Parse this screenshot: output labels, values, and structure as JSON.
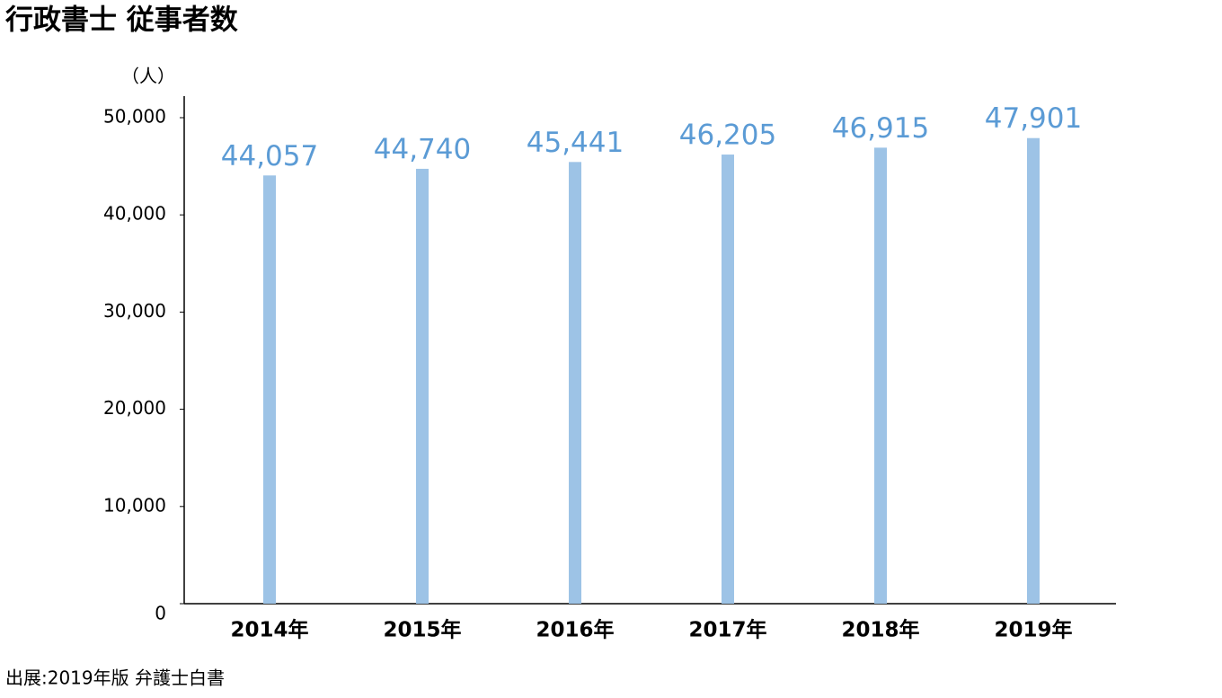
{
  "chart_data": {
    "type": "bar",
    "title": "行政書士 従事者数",
    "y_label": "（人）",
    "source": "出展:2019年版 弁護士白書",
    "categories": [
      "2014年",
      "2015年",
      "2016年",
      "2017年",
      "2018年",
      "2019年"
    ],
    "values": [
      44057,
      44740,
      45441,
      46205,
      46915,
      47901
    ],
    "value_labels": [
      "44,057",
      "44,740",
      "45,441",
      "46,205",
      "46,915",
      "47,901"
    ],
    "color": "#9dc3e6",
    "label_color": "#5b9bd5",
    "ylim": [
      0,
      50000
    ],
    "yticks": [
      0,
      {
        "value": 10000,
        "label": "10,000"
      },
      {
        "value": 20000,
        "label": "20,000"
      },
      {
        "value": 30000,
        "label": "30,000"
      },
      {
        "value": 40000,
        "label": "40,000"
      },
      {
        "value": 50000,
        "label": "50,000"
      }
    ],
    "grid": false
  }
}
